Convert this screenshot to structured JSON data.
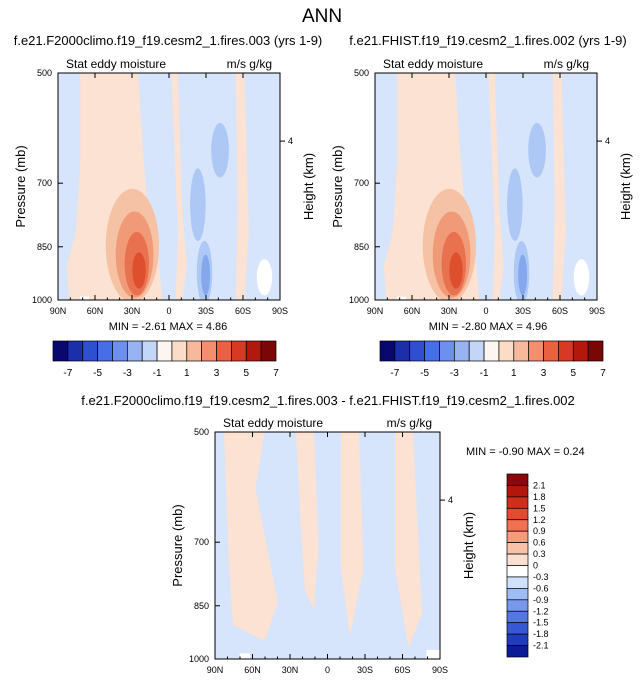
{
  "page": {
    "title": "ANN"
  },
  "chart_data": [
    {
      "type": "contour",
      "title": "f.e21.F2000climo.f19_f19.cesm2_1.fires.003 (yrs 1-9)",
      "left_subtitle": "Stat eddy moisture",
      "right_subtitle": "m/s g/kg",
      "ylabel": "Pressure (mb)",
      "ylabel_right": "Height (km)",
      "x_ticks": [
        "90N",
        "60N",
        "30N",
        "0",
        "30S",
        "60S",
        "90S"
      ],
      "y_ticks": [
        "500",
        "700",
        "850",
        "1000"
      ],
      "y_ticks_right": [
        "4"
      ],
      "ylim": [
        1000,
        500
      ],
      "stats": "MIN = -2.61  MAX =  4.86",
      "min": -2.61,
      "max": 4.86
    },
    {
      "type": "contour",
      "title": "f.e21.FHIST.f19_f19.cesm2_1.fires.002 (yrs 1-9)",
      "left_subtitle": "Stat eddy moisture",
      "right_subtitle": "m/s g/kg",
      "ylabel": "Pressure (mb)",
      "ylabel_right": "Height (km)",
      "x_ticks": [
        "90N",
        "60N",
        "30N",
        "0",
        "30S",
        "60S",
        "90S"
      ],
      "y_ticks": [
        "500",
        "700",
        "850",
        "1000"
      ],
      "y_ticks_right": [
        "4"
      ],
      "ylim": [
        1000,
        500
      ],
      "stats": "MIN = -2.80  MAX =  4.96",
      "min": -2.8,
      "max": 4.96
    },
    {
      "type": "contour",
      "title": "f.e21.F2000climo.f19_f19.cesm2_1.fires.003 - f.e21.FHIST.f19_f19.cesm2_1.fires.002",
      "left_subtitle": "Stat eddy moisture",
      "right_subtitle": "m/s g/kg",
      "ylabel": "Pressure (mb)",
      "ylabel_right": "Height (km)",
      "x_ticks": [
        "90N",
        "60N",
        "30N",
        "0",
        "30S",
        "60S",
        "90S"
      ],
      "y_ticks": [
        "500",
        "700",
        "850",
        "1000"
      ],
      "y_ticks_right": [
        "4"
      ],
      "ylim": [
        1000,
        500
      ],
      "stats": "MIN = -0.90  MAX =   0.24",
      "min": -0.9,
      "max": 0.24
    }
  ],
  "colorbar_top": {
    "labels": [
      "-7",
      "-5",
      "-3",
      "-1",
      "1",
      "3",
      "5",
      "7"
    ],
    "colors": [
      "#08086e",
      "#1a2fa8",
      "#2e4fd0",
      "#466ee6",
      "#6d90ee",
      "#97b3f3",
      "#c2d6f8",
      "#fdf6f0",
      "#fbdcc7",
      "#f8b89c",
      "#f38f6d",
      "#ea6040",
      "#d63a22",
      "#b2180c",
      "#7b0606"
    ]
  },
  "colorbar_bottom": {
    "labels": [
      "2.1",
      "1.8",
      "1.5",
      "1.2",
      "0.9",
      "0.6",
      "0.3",
      "0",
      "-0.3",
      "-0.6",
      "-0.9",
      "-1.2",
      "-1.5",
      "-1.8",
      "-2.1"
    ],
    "colors": [
      "#8c0707",
      "#b2160c",
      "#cf2e1a",
      "#e54a2e",
      "#f07051",
      "#f59a7b",
      "#f9c1a7",
      "#fbe0d2",
      "#ffffff",
      "#cfe1fb",
      "#9fbdf4",
      "#7898ec",
      "#5577e2",
      "#3758d5",
      "#1f3cbd",
      "#0b1c98"
    ]
  },
  "fills": {
    "pos1": "#fbe2d2",
    "pos2": "#f6c2a6",
    "pos3": "#f19a77",
    "pos4": "#e8714f",
    "pos5": "#de4f2e",
    "neg1": "#d6e5fb",
    "neg2": "#adc8f5",
    "neg3": "#84a7ee",
    "neg4": "#5a80e0"
  }
}
